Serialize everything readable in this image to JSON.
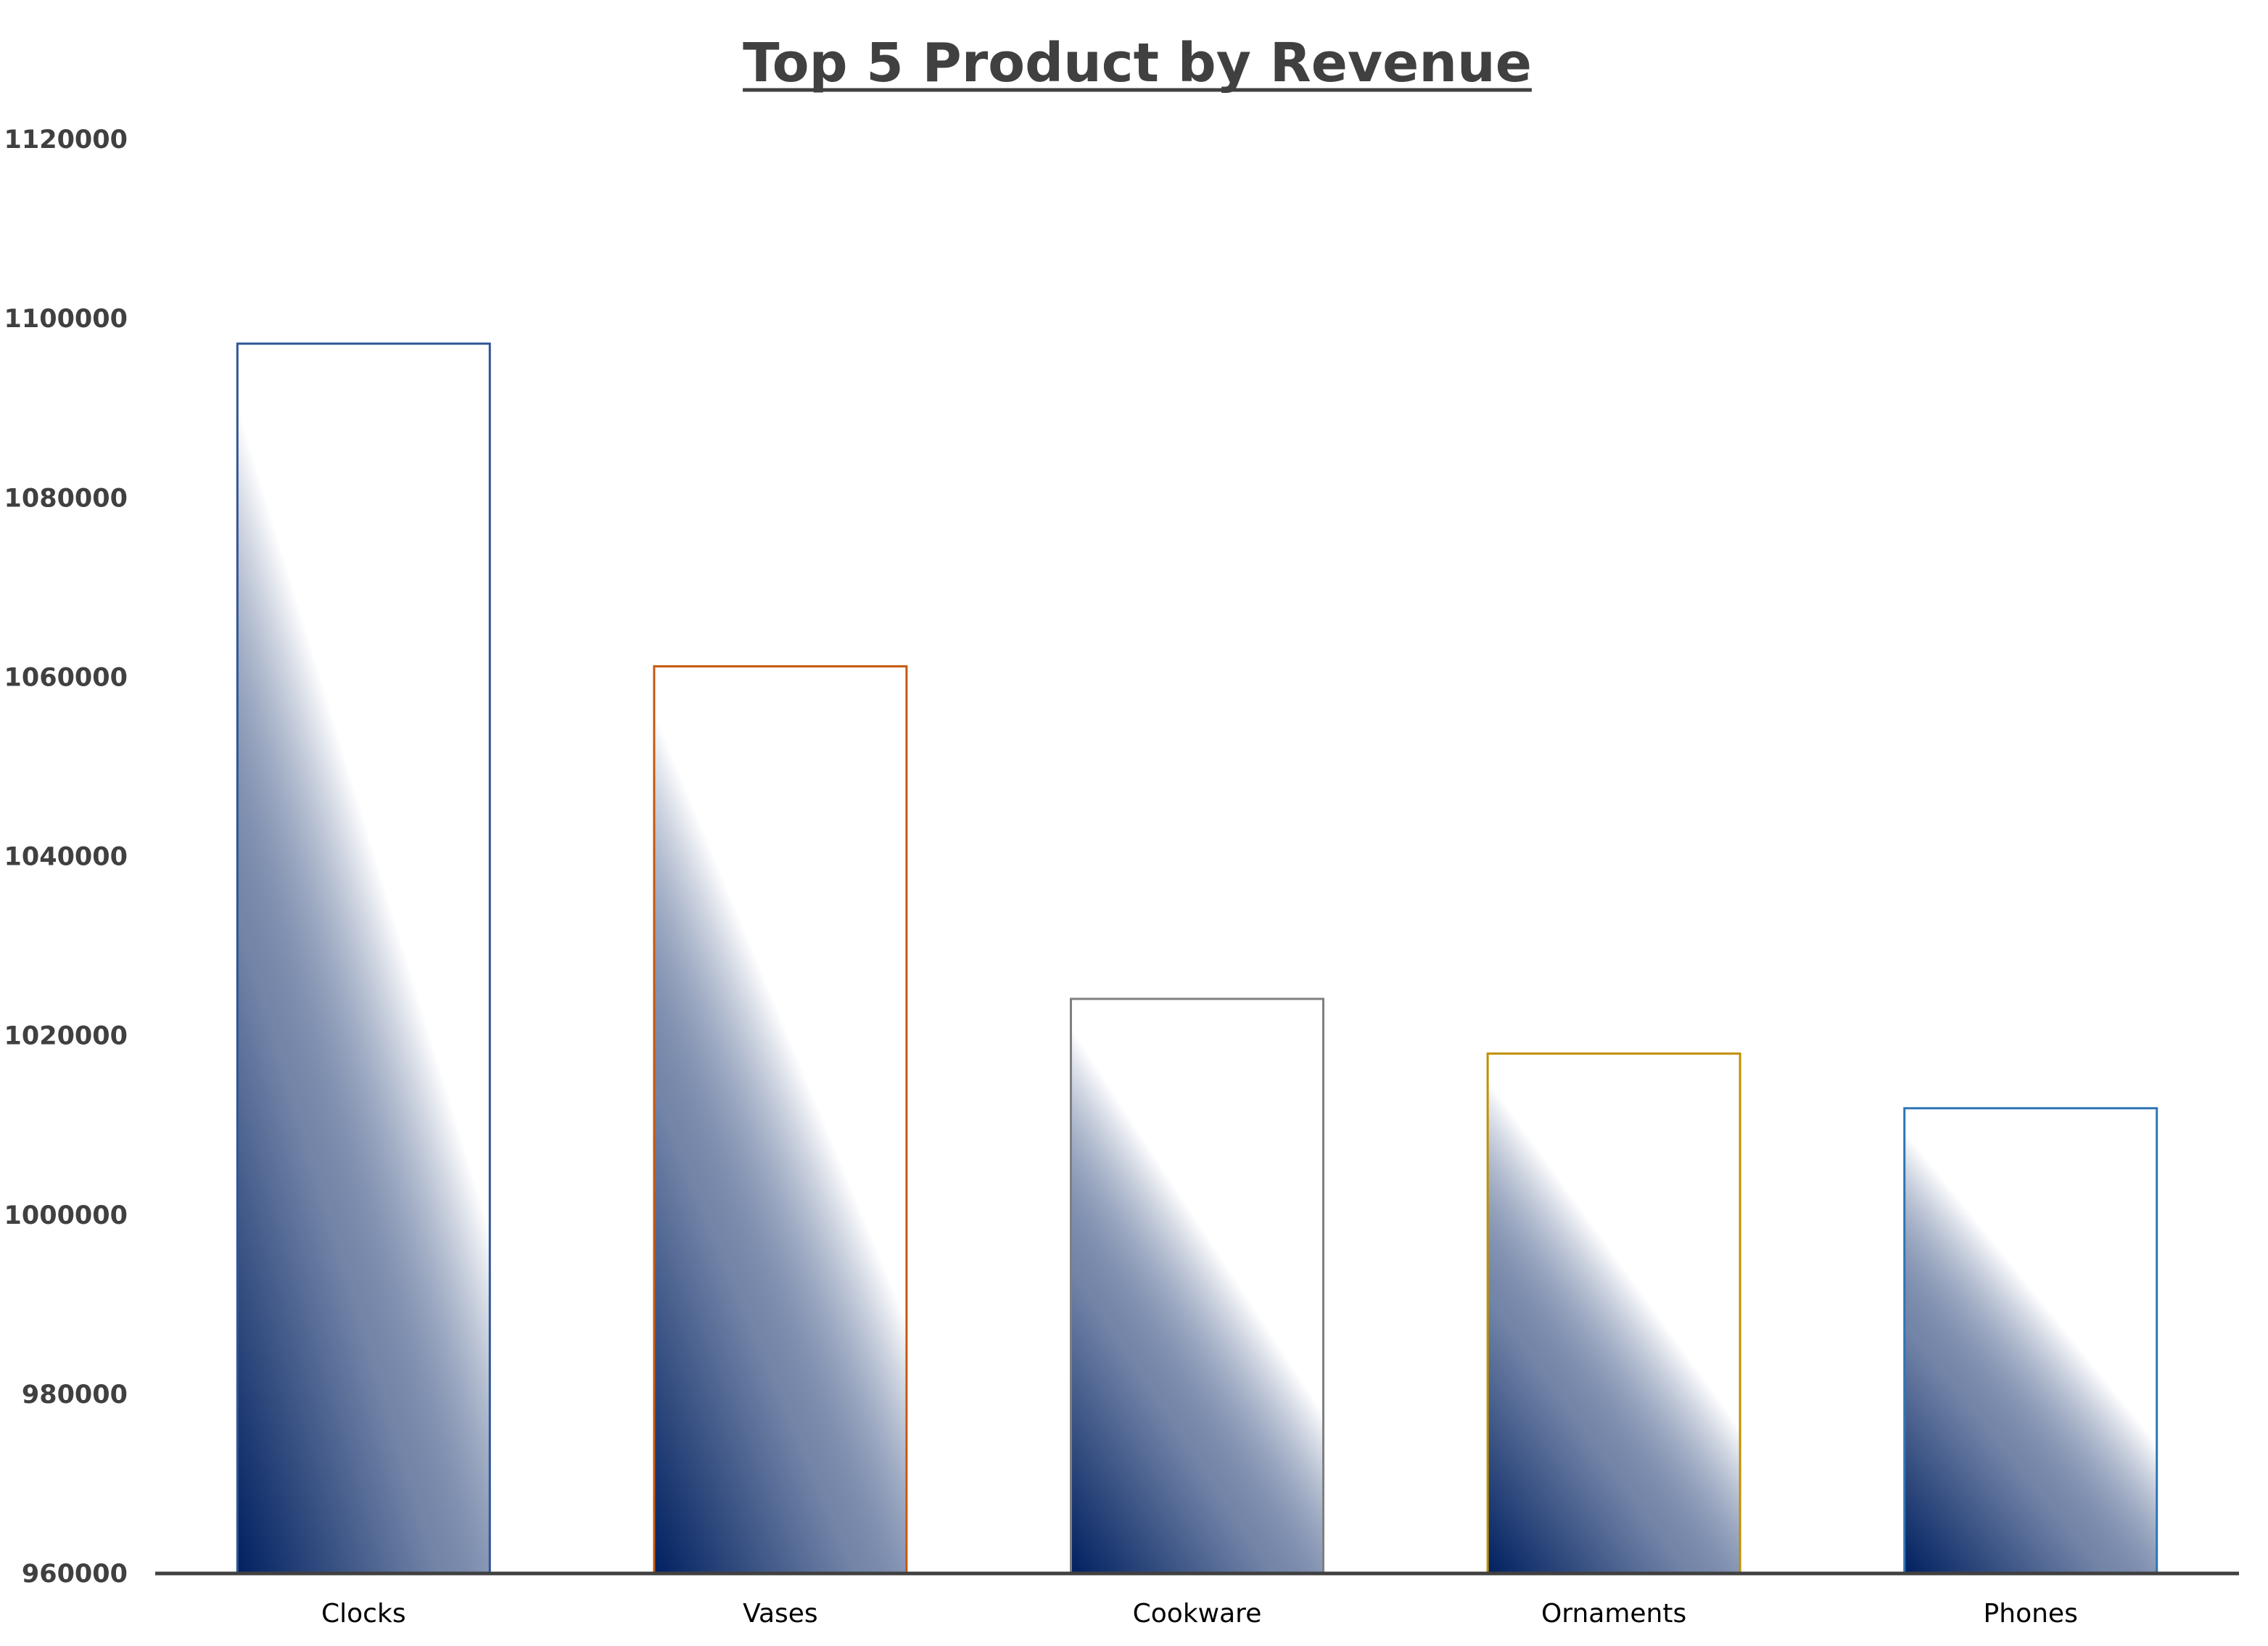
{
  "chart_data": {
    "type": "bar",
    "title": "Top 5 Product by Revenue",
    "xlabel": "",
    "ylabel": "",
    "categories": [
      "Clocks",
      "Vases",
      "Cookware",
      "Ornaments",
      "Phones"
    ],
    "values": [
      1097200,
      1061200,
      1024100,
      1018000,
      1011900
    ],
    "ylim": [
      960000,
      1120000
    ],
    "yticks": [
      960000,
      980000,
      1000000,
      1020000,
      1040000,
      1060000,
      1080000,
      1100000,
      1120000
    ],
    "ytick_labels": [
      "960000",
      "980000",
      "1000000",
      "1020000",
      "1040000",
      "1060000",
      "1080000",
      "1100000",
      "1120000"
    ],
    "grid": false,
    "legend": "none",
    "bar_outline_colors": [
      "#2F5597",
      "#C55A11",
      "#7F7F7F",
      "#BF9000",
      "#2E75B6"
    ],
    "bar_fill_color": "#002060",
    "axis_color": "#404040"
  }
}
